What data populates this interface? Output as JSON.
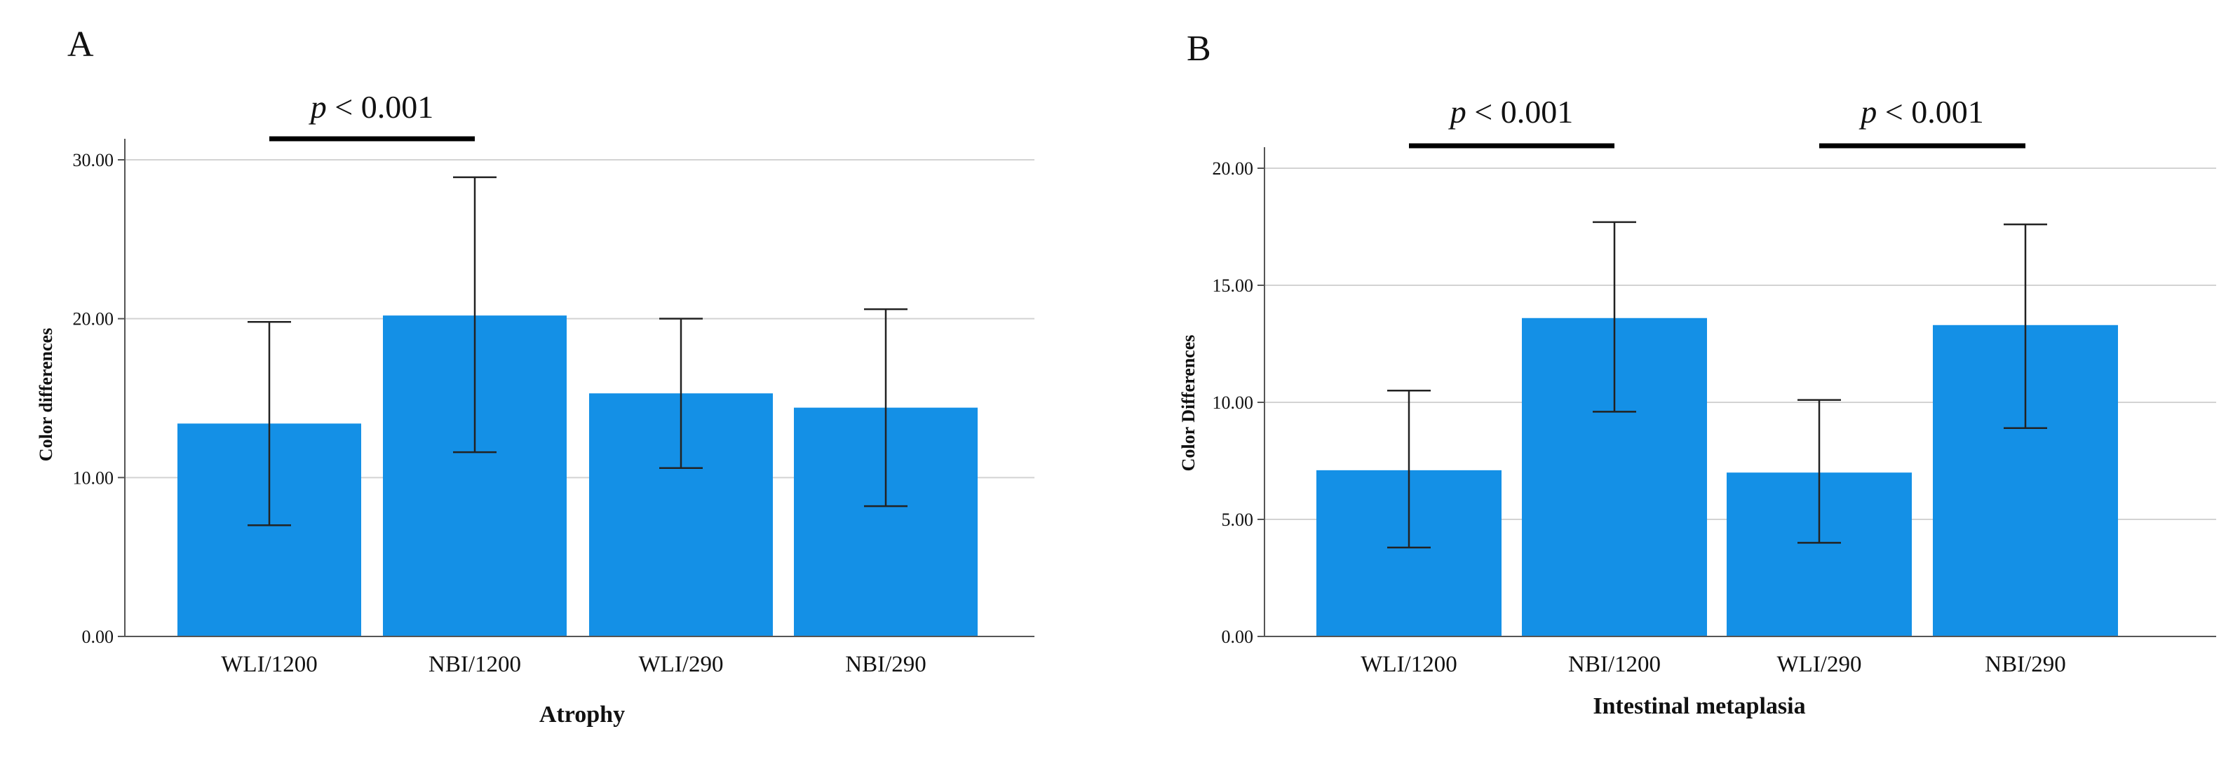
{
  "colors": {
    "bar": "#1490E6",
    "grid": "#D3D3D3",
    "axis": "#555555",
    "errbar": "#222222",
    "sigline": "#000000"
  },
  "chart_data": [
    {
      "type": "bar",
      "panel": "A",
      "categories": [
        "WLI/1200",
        "NBI/1200",
        "WLI/290",
        "NBI/290"
      ],
      "values": [
        13.4,
        20.2,
        15.3,
        14.4
      ],
      "error_low": [
        7.0,
        11.6,
        10.6,
        8.2
      ],
      "error_high": [
        19.8,
        28.9,
        20.0,
        20.6
      ],
      "xlabel": "Atrophy",
      "ylabel": "Color differences",
      "ylim": [
        0,
        30
      ],
      "yticks": [
        0,
        10,
        20,
        30
      ],
      "ytick_labels": [
        "0.00",
        "10.00",
        "20.00",
        "30.00"
      ],
      "grid": true,
      "significance": [
        {
          "from_category": 0,
          "to_category": 1,
          "italic_label": "p",
          "rest_label": " < 0.001"
        }
      ]
    },
    {
      "type": "bar",
      "panel": "B",
      "categories": [
        "WLI/1200",
        "NBI/1200",
        "WLI/290",
        "NBI/290"
      ],
      "values": [
        7.1,
        13.6,
        7.0,
        13.3
      ],
      "error_low": [
        3.8,
        9.6,
        4.0,
        8.9
      ],
      "error_high": [
        10.5,
        17.7,
        10.1,
        17.6
      ],
      "xlabel": "Intestinal metaplasia",
      "ylabel": "Color Differences",
      "ylim": [
        0,
        20
      ],
      "yticks": [
        0,
        5,
        10,
        15,
        20
      ],
      "ytick_labels": [
        "0.00",
        "5.00",
        "10.00",
        "15.00",
        "20.00"
      ],
      "grid": true,
      "significance": [
        {
          "from_category": 0,
          "to_category": 1,
          "italic_label": "p",
          "rest_label": " < 0.001"
        },
        {
          "from_category": 2,
          "to_category": 3,
          "italic_label": "p",
          "rest_label": " < 0.001"
        }
      ]
    }
  ]
}
